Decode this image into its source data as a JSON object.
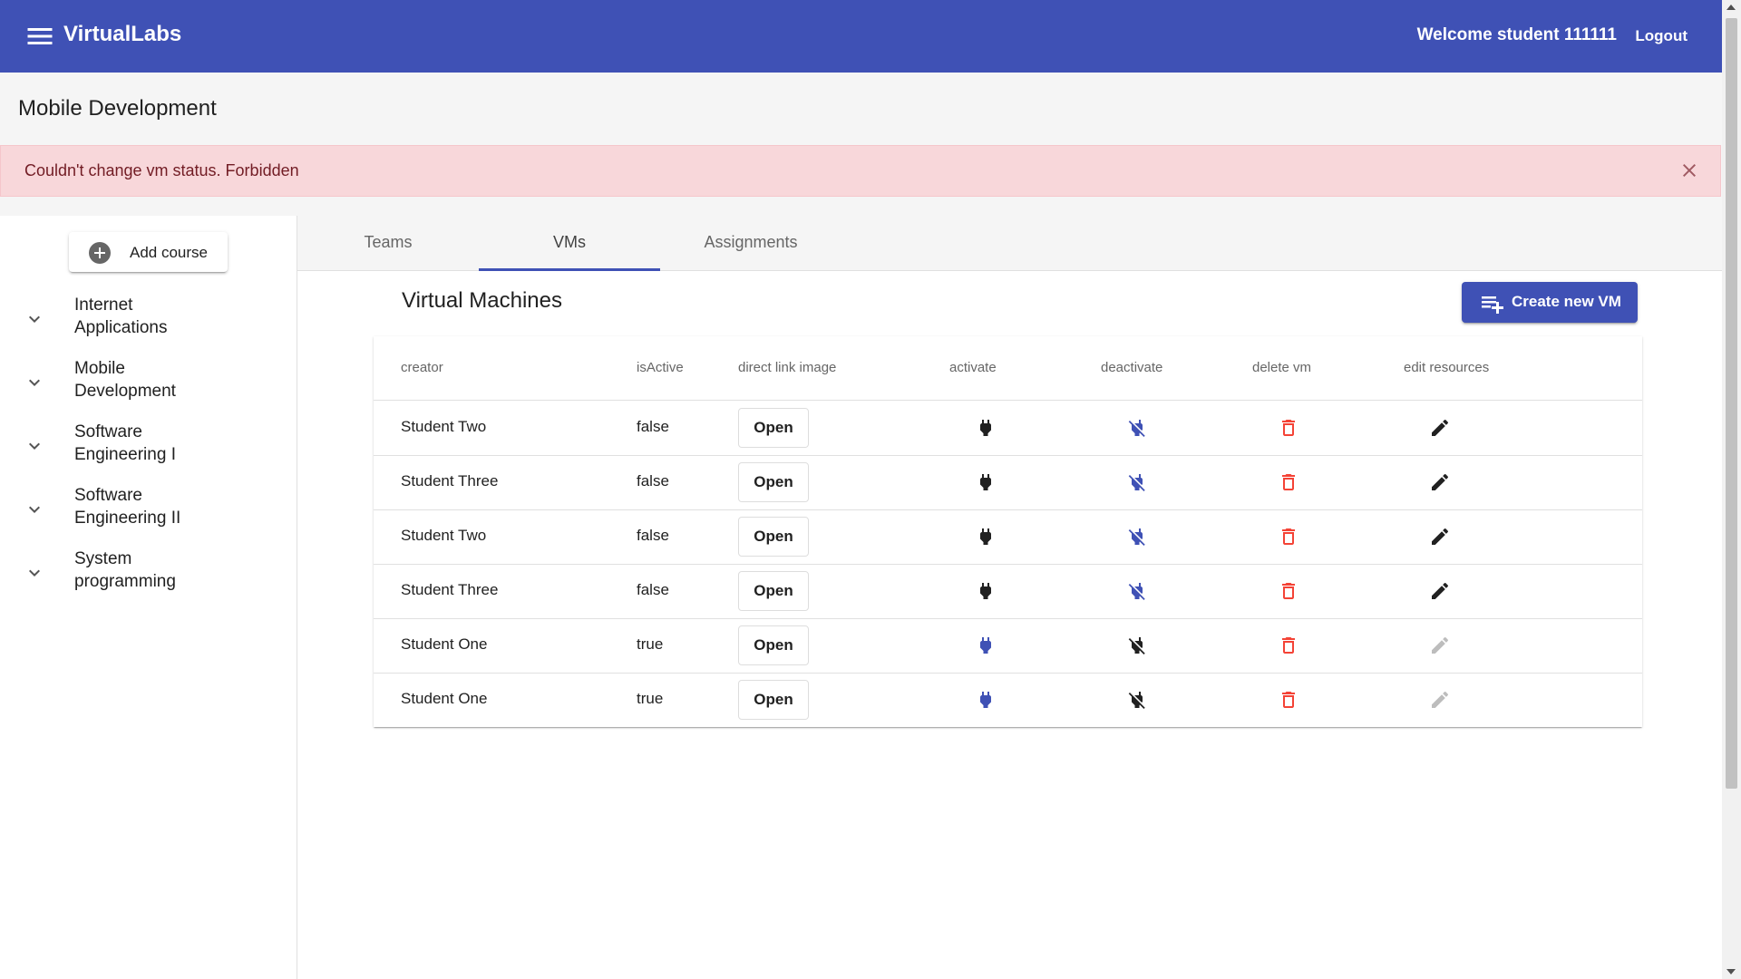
{
  "app": {
    "title": "VirtualLabs",
    "welcome": "Welcome student 111111",
    "logout_label": "Logout",
    "menu_icon": "menu-icon"
  },
  "colors": {
    "primary": "#3f51b5",
    "alert_bg": "#f8d7da",
    "alert_text": "#721c24",
    "delete_red": "#f44336",
    "disabled_grey": "#bdbdbd"
  },
  "course": {
    "title": "Mobile Development"
  },
  "alert": {
    "message": "Couldn't change vm status. Forbidden",
    "close_icon": "close-icon"
  },
  "sidebar": {
    "add_course_label": "Add course",
    "courses": [
      {
        "line1": "Internet",
        "line2": "Applications"
      },
      {
        "line1": "Mobile",
        "line2": "Development"
      },
      {
        "line1": "Software",
        "line2": "Engineering I"
      },
      {
        "line1": "Software",
        "line2": "Engineering II"
      },
      {
        "line1": "System",
        "line2": "programming"
      }
    ]
  },
  "tabs": [
    {
      "label": "Teams",
      "active": false
    },
    {
      "label": "VMs",
      "active": true
    },
    {
      "label": "Assignments",
      "active": false
    }
  ],
  "vms": {
    "heading": "Virtual Machines",
    "create_label": "Create new VM",
    "columns": {
      "creator": "creator",
      "isActive": "isActive",
      "link": "direct link image",
      "activate": "activate",
      "deactivate": "deactivate",
      "delete": "delete vm",
      "edit": "edit resources"
    },
    "open_label": "Open",
    "rows": [
      {
        "creator": "Student Two",
        "isActive": "false"
      },
      {
        "creator": "Student Three",
        "isActive": "false"
      },
      {
        "creator": "Student Two",
        "isActive": "false"
      },
      {
        "creator": "Student Three",
        "isActive": "false"
      },
      {
        "creator": "Student One",
        "isActive": "true"
      },
      {
        "creator": "Student One",
        "isActive": "true"
      }
    ]
  }
}
